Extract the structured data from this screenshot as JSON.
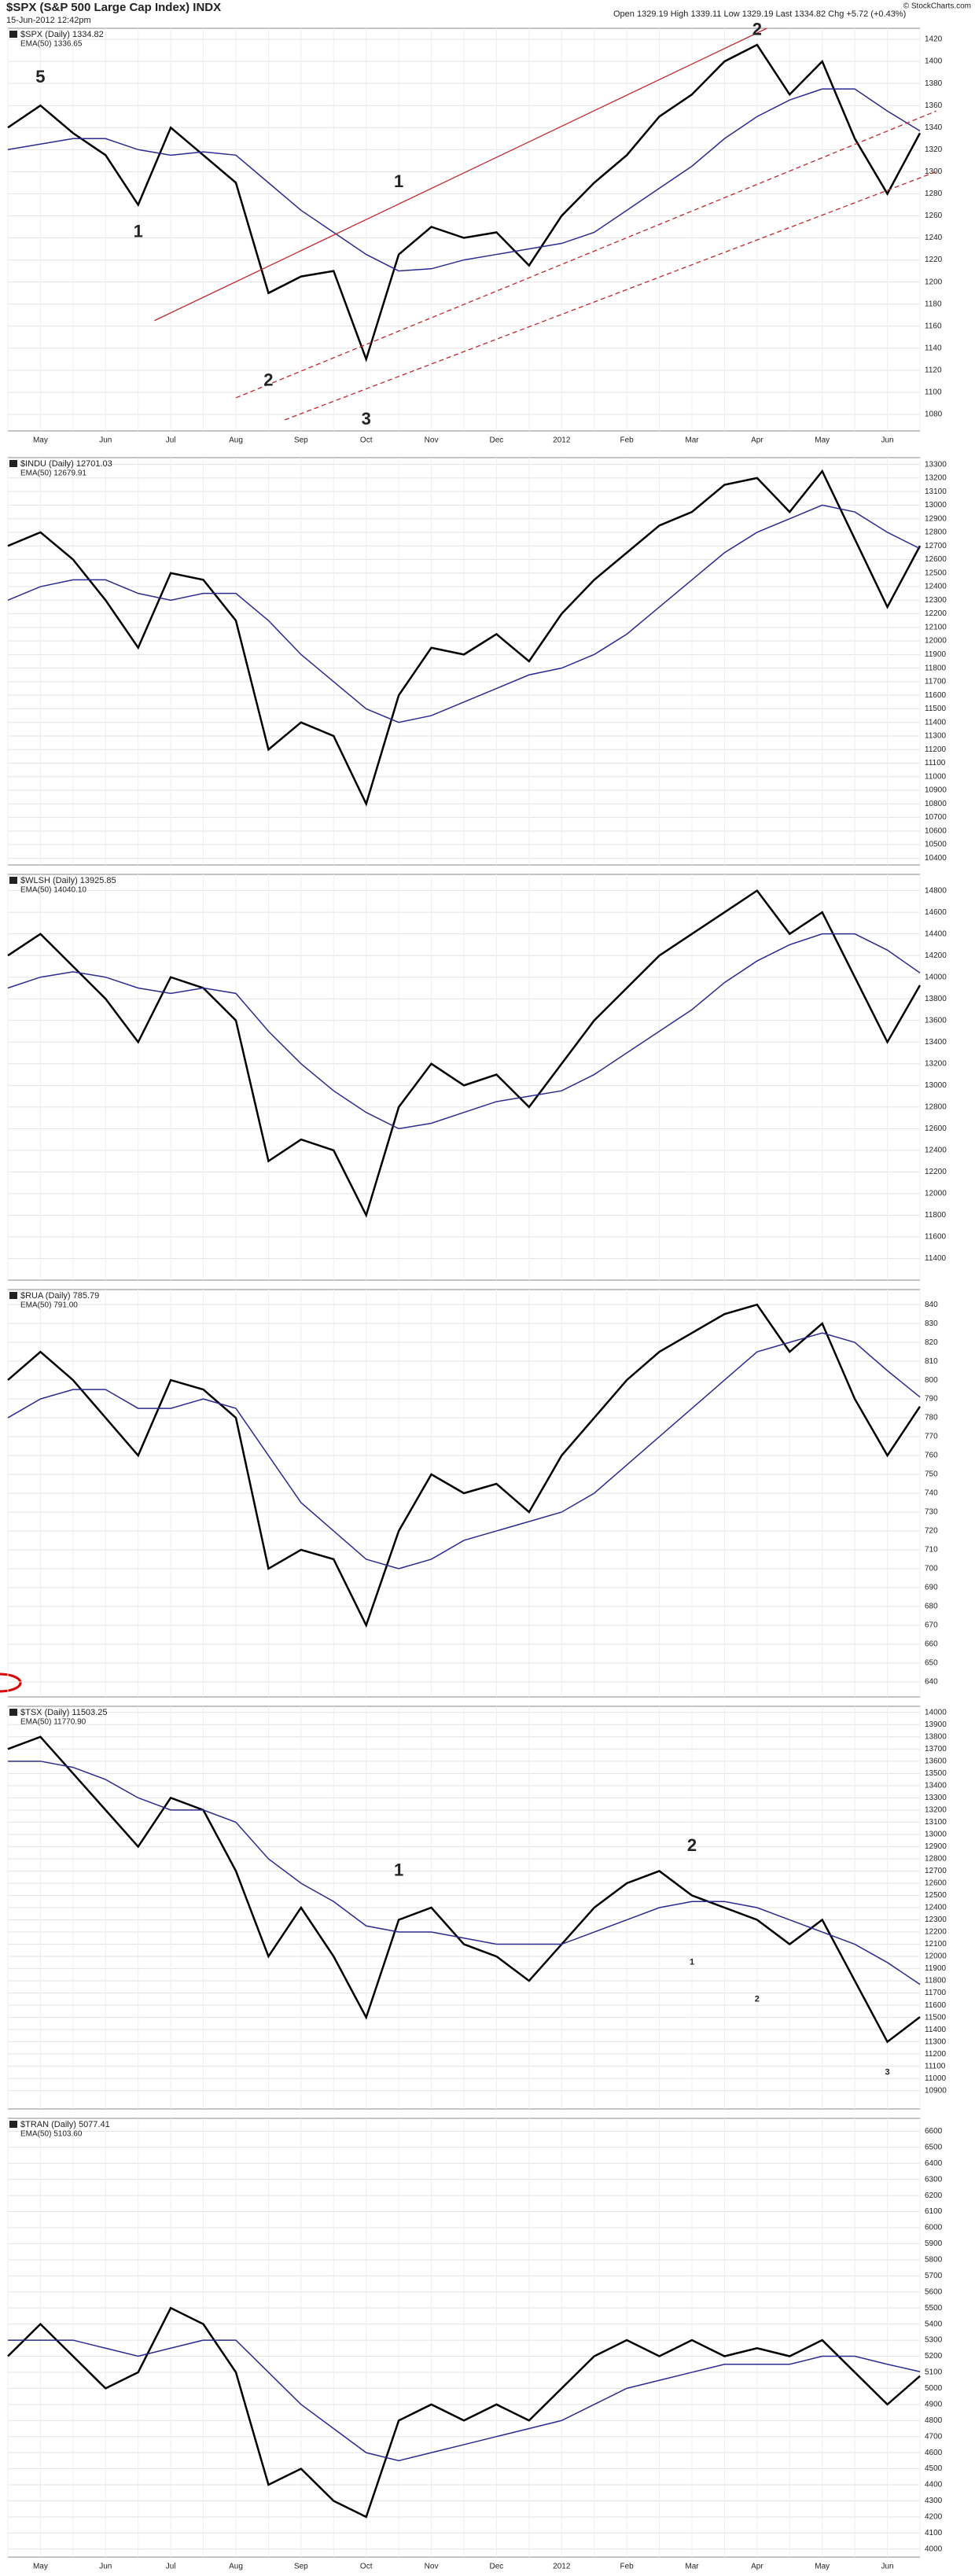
{
  "header": {
    "title": "$SPX (S&P 500 Large Cap Index) INDX",
    "date": "15-Jun-2012 12:42pm",
    "quote": "Open 1329.19 High 1339.11 Low 1329.19 Last 1334.82 Chg +5.72 (+0.43%)",
    "credit": "© StockCharts.com"
  },
  "chart_data": [
    {
      "type": "line",
      "categories": [
        null,
        "May",
        null,
        "Jun",
        null,
        "Jul",
        null,
        "Aug",
        null,
        "Sep",
        null,
        "Oct",
        null,
        "Nov",
        null,
        "Dec",
        null,
        "2012",
        null,
        "Feb",
        null,
        "Mar",
        null,
        "Apr",
        null,
        "May",
        null,
        "Jun",
        null
      ],
      "series": [
        {
          "name": "$SPX (Daily) 1334.82",
          "color": "#000000",
          "values": [
            1340,
            1360,
            1335,
            1315,
            1270,
            1340,
            1315,
            1290,
            1190,
            1205,
            1210,
            1130,
            1225,
            1250,
            1240,
            1245,
            1215,
            1260,
            1290,
            1315,
            1350,
            1370,
            1400,
            1415,
            1370,
            1400,
            1330,
            1280,
            1335
          ]
        },
        {
          "name": "EMA(50) 1336.65",
          "color": "#2b2b8f",
          "values": [
            1320,
            1325,
            1330,
            1330,
            1320,
            1315,
            1318,
            1315,
            1290,
            1265,
            1245,
            1225,
            1210,
            1212,
            1220,
            1225,
            1230,
            1235,
            1245,
            1265,
            1285,
            1305,
            1330,
            1350,
            1365,
            1375,
            1375,
            1355,
            1337
          ]
        }
      ],
      "ylim": [
        1065,
        1430
      ],
      "yticks": [
        1080,
        1100,
        1120,
        1140,
        1160,
        1180,
        1200,
        1220,
        1240,
        1260,
        1280,
        1300,
        1320,
        1340,
        1360,
        1380,
        1400,
        1420
      ],
      "grid": true,
      "annotations": [
        {
          "text": "5",
          "color": "#1a1a8c"
        },
        {
          "text": "1",
          "color": "#c0282d"
        },
        {
          "text": "2",
          "color": "#c0282d"
        },
        {
          "text": "3",
          "color": "#c0282d"
        },
        {
          "text": "1",
          "color": "#1a1a8c"
        },
        {
          "text": "2",
          "color": "#1a1a8c"
        }
      ]
    },
    {
      "type": "line",
      "series": [
        {
          "name": "$INDU (Daily) 12701.03",
          "color": "#000000",
          "values": [
            12700,
            12800,
            12600,
            12300,
            11950,
            12500,
            12450,
            12150,
            11200,
            11400,
            11300,
            10800,
            11600,
            11950,
            11900,
            12050,
            11850,
            12200,
            12450,
            12650,
            12850,
            12950,
            13150,
            13200,
            12950,
            13250,
            12750,
            12250,
            12700
          ]
        },
        {
          "name": "EMA(50) 12679.91",
          "color": "#2b2b8f",
          "values": [
            12300,
            12400,
            12450,
            12450,
            12350,
            12300,
            12350,
            12350,
            12150,
            11900,
            11700,
            11500,
            11400,
            11450,
            11550,
            11650,
            11750,
            11800,
            11900,
            12050,
            12250,
            12450,
            12650,
            12800,
            12900,
            13000,
            12950,
            12800,
            12680
          ]
        }
      ],
      "ylim": [
        10350,
        13350
      ],
      "yticks": [
        10400,
        10500,
        10600,
        10700,
        10800,
        10900,
        11000,
        11100,
        11200,
        11300,
        11400,
        11500,
        11600,
        11700,
        11800,
        11900,
        12000,
        12100,
        12200,
        12300,
        12400,
        12500,
        12600,
        12700,
        12800,
        12900,
        13000,
        13100,
        13200,
        13300
      ],
      "grid": true
    },
    {
      "type": "line",
      "series": [
        {
          "name": "$WLSH (Daily) 13925.85",
          "color": "#000000",
          "values": [
            14200,
            14400,
            14100,
            13800,
            13400,
            14000,
            13900,
            13600,
            12300,
            12500,
            12400,
            11800,
            12800,
            13200,
            13000,
            13100,
            12800,
            13200,
            13600,
            13900,
            14200,
            14400,
            14600,
            14800,
            14400,
            14600,
            14000,
            13400,
            13925
          ]
        },
        {
          "name": "EMA(50) 14040.10",
          "color": "#2b2b8f",
          "values": [
            13900,
            14000,
            14050,
            14000,
            13900,
            13850,
            13900,
            13850,
            13500,
            13200,
            12950,
            12750,
            12600,
            12650,
            12750,
            12850,
            12900,
            12950,
            13100,
            13300,
            13500,
            13700,
            13950,
            14150,
            14300,
            14400,
            14400,
            14250,
            14040
          ]
        }
      ],
      "ylim": [
        11200,
        14950
      ],
      "yticks": [
        11400,
        11600,
        11800,
        12000,
        12200,
        12400,
        12600,
        12800,
        13000,
        13200,
        13400,
        13600,
        13800,
        14000,
        14200,
        14400,
        14600,
        14800
      ],
      "grid": true
    },
    {
      "type": "line",
      "series": [
        {
          "name": "$RUA (Daily) 785.79",
          "color": "#000000",
          "values": [
            800,
            815,
            800,
            780,
            760,
            800,
            795,
            780,
            700,
            710,
            705,
            670,
            720,
            750,
            740,
            745,
            730,
            760,
            780,
            800,
            815,
            825,
            835,
            840,
            815,
            830,
            790,
            760,
            786
          ]
        },
        {
          "name": "EMA(50) 791.00",
          "color": "#2b2b8f",
          "values": [
            780,
            790,
            795,
            795,
            785,
            785,
            790,
            785,
            760,
            735,
            720,
            705,
            700,
            705,
            715,
            720,
            725,
            730,
            740,
            755,
            770,
            785,
            800,
            815,
            820,
            825,
            820,
            805,
            791
          ]
        }
      ],
      "ylim": [
        632,
        848
      ],
      "yticks": [
        640,
        650,
        660,
        670,
        680,
        690,
        700,
        710,
        720,
        730,
        740,
        750,
        760,
        770,
        780,
        790,
        800,
        810,
        820,
        830,
        840
      ],
      "grid": true
    },
    {
      "type": "line",
      "series": [
        {
          "name": "$TSX (Daily) 11503.25",
          "color": "#000000",
          "values": [
            13700,
            13800,
            13500,
            13200,
            12900,
            13300,
            13200,
            12700,
            12000,
            12400,
            12000,
            11500,
            12300,
            12400,
            12100,
            12000,
            11800,
            12100,
            12400,
            12600,
            12700,
            12500,
            12400,
            12300,
            12100,
            12300,
            11800,
            11300,
            11503
          ]
        },
        {
          "name": "EMA(50) 11770.90",
          "color": "#2b2b8f",
          "values": [
            13600,
            13600,
            13550,
            13450,
            13300,
            13200,
            13200,
            13100,
            12800,
            12600,
            12450,
            12250,
            12200,
            12200,
            12150,
            12100,
            12100,
            12100,
            12200,
            12300,
            12400,
            12450,
            12450,
            12400,
            12300,
            12200,
            12100,
            11950,
            11771
          ]
        }
      ],
      "ylim": [
        10750,
        14050
      ],
      "yticks": [
        10900,
        11000,
        11100,
        11200,
        11300,
        11400,
        11500,
        11600,
        11700,
        11800,
        11900,
        12000,
        12100,
        12200,
        12300,
        12400,
        12500,
        12600,
        12700,
        12800,
        12900,
        13000,
        13100,
        13200,
        13300,
        13400,
        13500,
        13600,
        13700,
        13800,
        13900,
        14000
      ],
      "grid": true,
      "annotations": [
        {
          "text": "1",
          "color": "#1a1a8c"
        },
        {
          "text": "2",
          "color": "#1a1a8c"
        },
        {
          "text": "1",
          "color": "#1a1a8c"
        },
        {
          "text": "2",
          "color": "#1a1a8c"
        },
        {
          "text": "3",
          "color": "#1a1a8c"
        }
      ]
    },
    {
      "type": "line",
      "categories": [
        null,
        "May",
        null,
        "Jun",
        null,
        "Jul",
        null,
        "Aug",
        null,
        "Sep",
        null,
        "Oct",
        null,
        "Nov",
        null,
        "Dec",
        null,
        "2012",
        null,
        "Feb",
        null,
        "Mar",
        null,
        "Apr",
        null,
        "May",
        null,
        "Jun",
        null
      ],
      "series": [
        {
          "name": "$TRAN (Daily) 5077.41",
          "color": "#000000",
          "values": [
            5200,
            5400,
            5200,
            5000,
            5100,
            5500,
            5400,
            5100,
            4400,
            4500,
            4300,
            4200,
            4800,
            4900,
            4800,
            4900,
            4800,
            5000,
            5200,
            5300,
            5200,
            5300,
            5200,
            5250,
            5200,
            5300,
            5100,
            4900,
            5077
          ]
        },
        {
          "name": "EMA(50) 5103.60",
          "color": "#2b2b8f",
          "values": [
            5300,
            5300,
            5300,
            5250,
            5200,
            5250,
            5300,
            5300,
            5100,
            4900,
            4750,
            4600,
            4550,
            4600,
            4650,
            4700,
            4750,
            4800,
            4900,
            5000,
            5050,
            5100,
            5150,
            5150,
            5150,
            5200,
            5200,
            5150,
            5104
          ]
        }
      ],
      "ylim": [
        3950,
        6680
      ],
      "yticks": [
        4000,
        4100,
        4200,
        4300,
        4400,
        4500,
        4600,
        4700,
        4800,
        4900,
        5000,
        5100,
        5200,
        5300,
        5400,
        5500,
        5600,
        5700,
        5800,
        5900,
        6000,
        6100,
        6200,
        6300,
        6400,
        6500,
        6600
      ],
      "grid": true
    }
  ]
}
